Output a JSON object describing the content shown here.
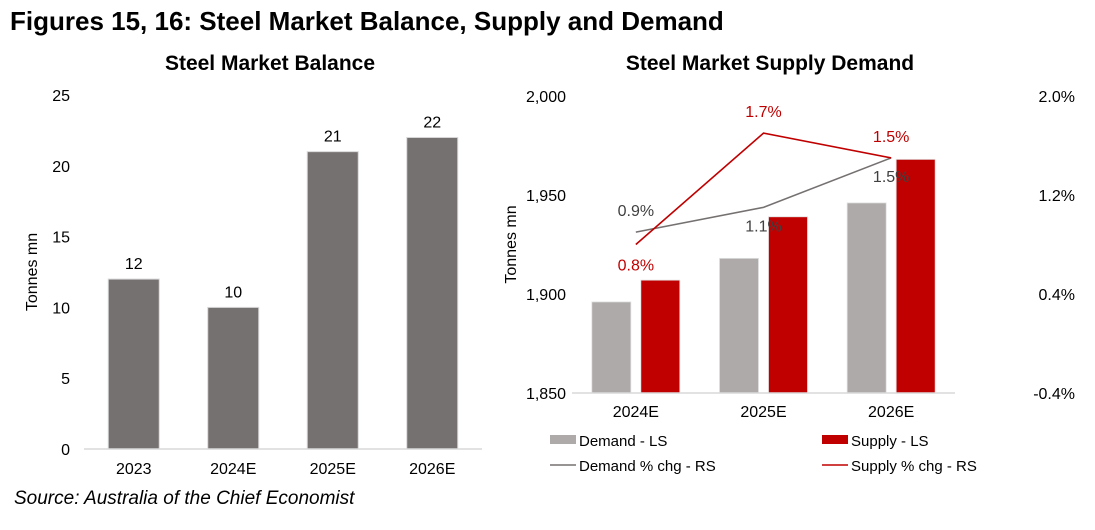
{
  "title": "Figures 15, 16: Steel Market Balance, Supply and Demand",
  "source": "Source: Australia of the Chief Economist",
  "chart_data": [
    {
      "type": "bar",
      "title": "Steel Market Balance",
      "ylabel": "Tonnes mn",
      "xlabel": "",
      "categories": [
        "2023",
        "2024E",
        "2025E",
        "2026E"
      ],
      "values": [
        12,
        10,
        21,
        22
      ],
      "data_labels": [
        "12",
        "10",
        "21",
        "22"
      ],
      "ylim": [
        0,
        25
      ],
      "yticks": [
        0,
        5,
        10,
        15,
        20,
        25
      ],
      "grid": false,
      "color": "#767171"
    },
    {
      "type": "bar",
      "title": "Steel Market Supply Demand",
      "ylabel": "Tonnes mn",
      "categories": [
        "2024E",
        "2025E",
        "2026E"
      ],
      "ylim": [
        1850,
        2000
      ],
      "yticks": [
        1850,
        1900,
        1950,
        2000
      ],
      "ytick_labels": [
        "1,850",
        "1,900",
        "1,950",
        "2,000"
      ],
      "y2lim": [
        -0.4,
        2.0
      ],
      "y2ticks": [
        -0.4,
        0.4,
        1.2,
        2.0
      ],
      "y2tick_labels": [
        "-0.4%",
        "0.4%",
        "1.2%",
        "2.0%"
      ],
      "grid": false,
      "legend_position": "bottom",
      "series": [
        {
          "name": "Demand - LS",
          "kind": "bar",
          "axis": "left",
          "values": [
            1896,
            1918,
            1946
          ],
          "color": "#AEAAAA"
        },
        {
          "name": "Supply - LS",
          "kind": "bar",
          "axis": "left",
          "values": [
            1907,
            1939,
            1968
          ],
          "color": "#C00000"
        },
        {
          "name": "Demand % chg - RS",
          "kind": "line",
          "axis": "right",
          "values": [
            0.9,
            1.1,
            1.5
          ],
          "labels": [
            "0.9%",
            "1.1%",
            "1.5%"
          ],
          "color": "#767171"
        },
        {
          "name": "Supply % chg - RS",
          "kind": "line",
          "axis": "right",
          "values": [
            0.8,
            1.7,
            1.5
          ],
          "labels": [
            "0.8%",
            "1.7%",
            "1.5%"
          ],
          "color": "#C00000"
        }
      ]
    }
  ]
}
